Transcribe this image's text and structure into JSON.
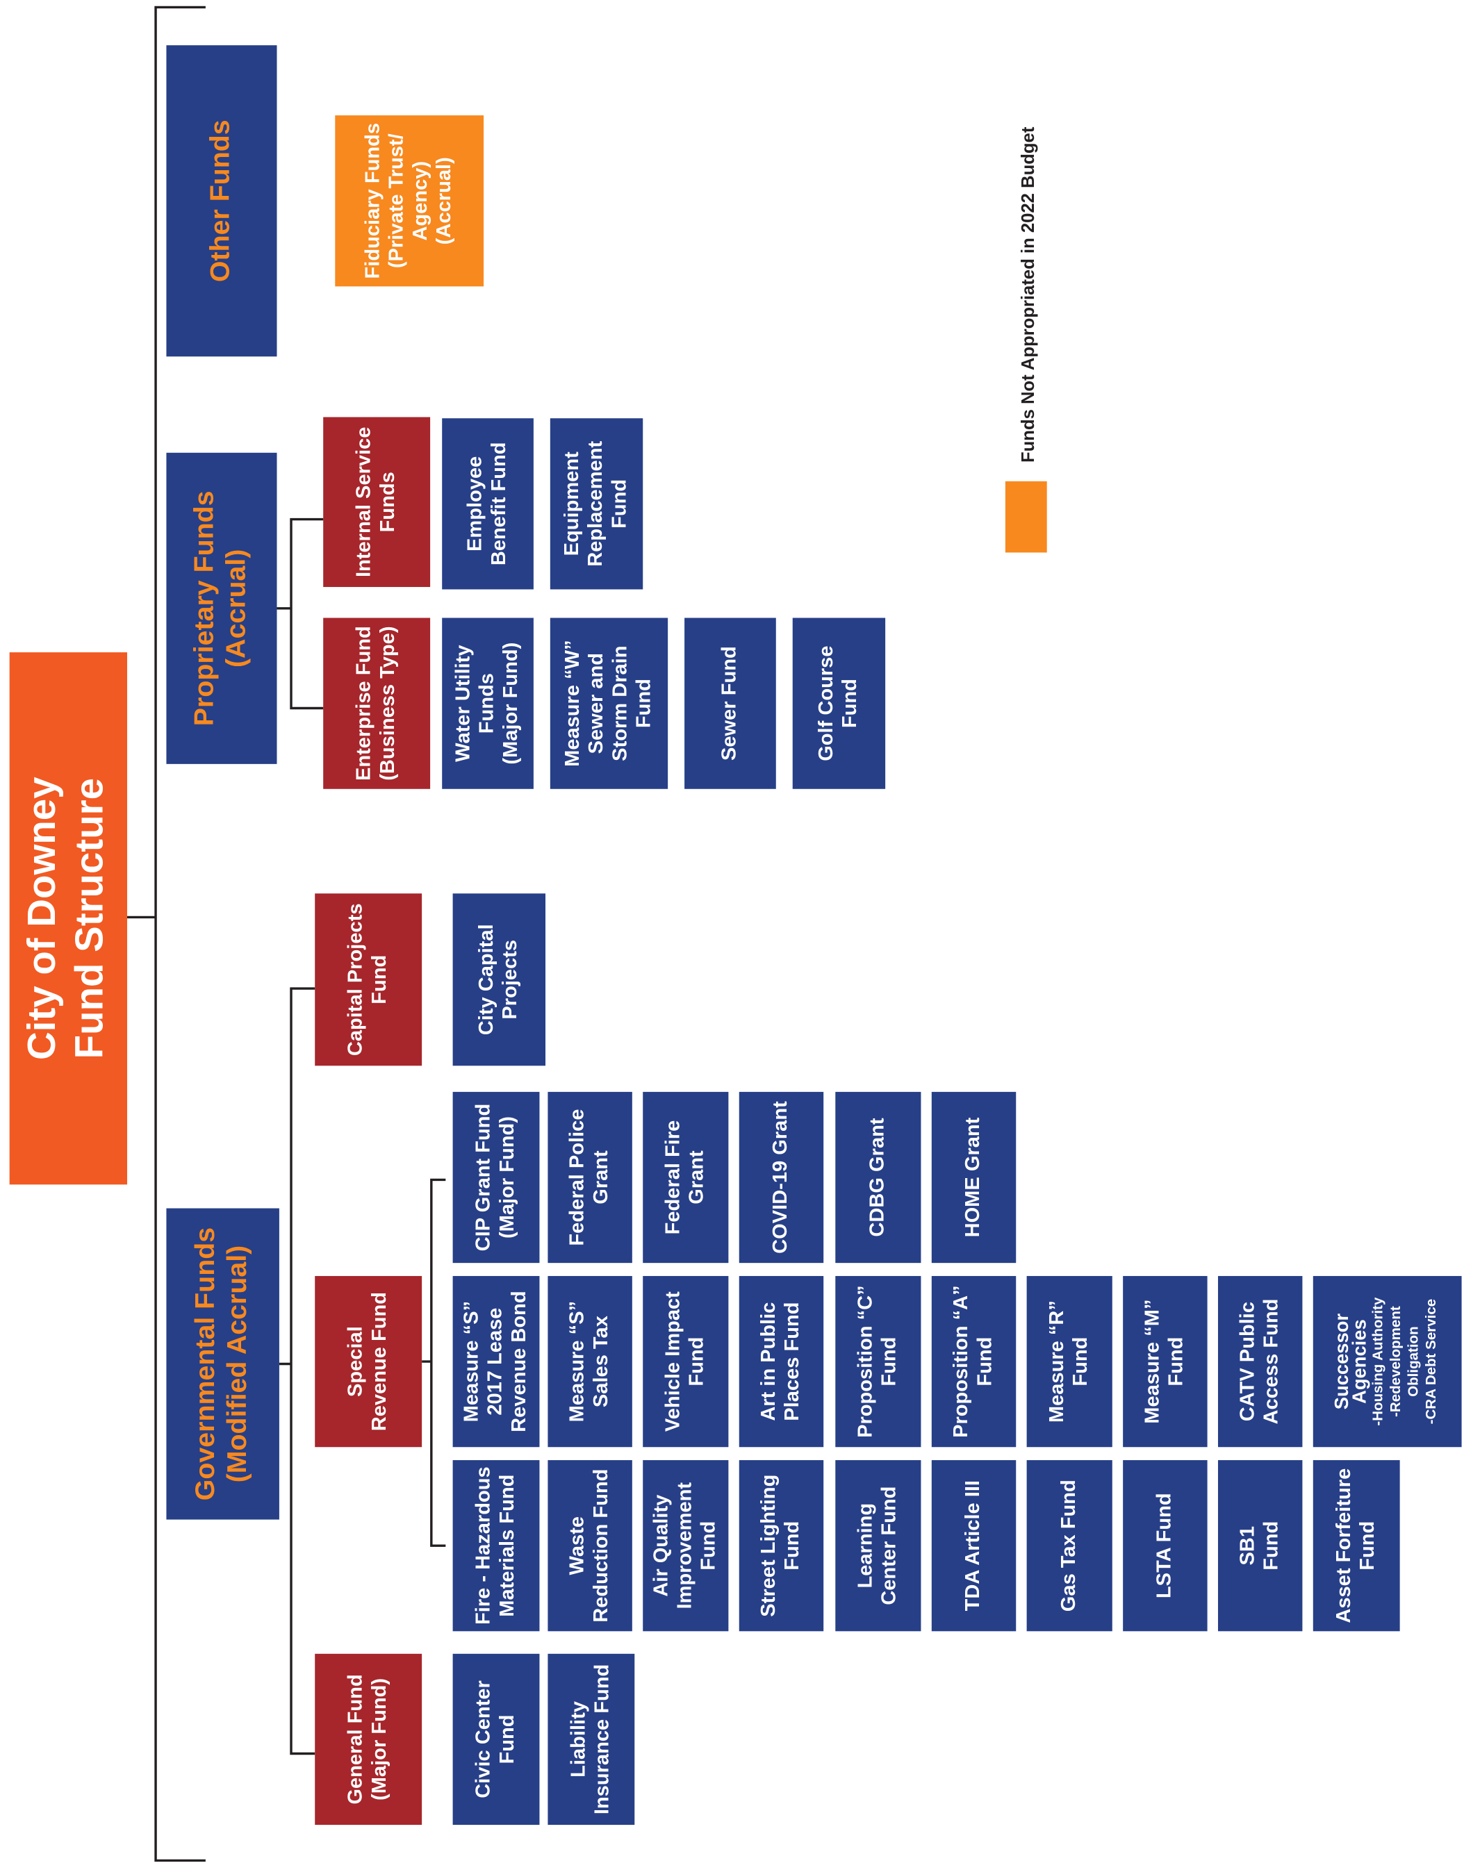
{
  "title": [
    "City of Downey",
    "Fund Structure"
  ],
  "legend": "Funds Not Appropriated in 2022 Budget",
  "nodes": [
    {
      "lines": [
        "Other Funds"
      ]
    },
    {
      "lines": [
        "Fiduciary Funds",
        "(Private Trust/",
        "Agency)",
        "(Accrual)"
      ]
    },
    {
      "lines": [
        "Proprietary Funds",
        "(Accrual)"
      ]
    },
    {
      "lines": [
        "Internal Service",
        "Funds"
      ]
    },
    {
      "lines": [
        "Employee",
        "Benefit Fund"
      ]
    },
    {
      "lines": [
        "Equipment",
        "Replacement",
        "Fund"
      ]
    },
    {
      "lines": [
        "Enterprise Fund",
        "(Business Type)"
      ]
    },
    {
      "lines": [
        "Water Utility",
        "Funds",
        "(Major Fund)"
      ]
    },
    {
      "lines": [
        "Measure “W”",
        "Sewer and",
        "Storm Drain",
        "Fund"
      ]
    },
    {
      "lines": [
        "Sewer Fund"
      ]
    },
    {
      "lines": [
        "Golf Course",
        "Fund"
      ]
    },
    {
      "lines": [
        "Governmental Funds",
        "(Modified Accrual)"
      ]
    },
    {
      "lines": [
        "Capital Projects",
        "Fund"
      ]
    },
    {
      "lines": [
        "City Capital",
        "Projects"
      ]
    },
    {
      "lines": [
        "CIP Grant Fund",
        "(Major Fund)"
      ]
    },
    {
      "lines": [
        "Federal Police",
        "Grant"
      ]
    },
    {
      "lines": [
        "Federal Fire",
        "Grant"
      ]
    },
    {
      "lines": [
        "COVID-19 Grant"
      ]
    },
    {
      "lines": [
        "CDBG Grant"
      ]
    },
    {
      "lines": [
        "HOME Grant"
      ]
    },
    {
      "lines": [
        "Special",
        "Revenue Fund"
      ]
    },
    {
      "lines": [
        "Measure “S”",
        "2017 Lease",
        "Revenue Bond"
      ]
    },
    {
      "lines": [
        "Measure “S”",
        "Sales Tax"
      ]
    },
    {
      "lines": [
        "Vehicle Impact",
        "Fund"
      ]
    },
    {
      "lines": [
        "Art in Public",
        "Places Fund"
      ]
    },
    {
      "lines": [
        "Proposition “C”",
        "Fund"
      ]
    },
    {
      "lines": [
        "Proposition “A”",
        "Fund"
      ]
    },
    {
      "lines": [
        "Measure “R”",
        "Fund"
      ]
    },
    {
      "lines": [
        "Measure “M”",
        "Fund"
      ]
    },
    {
      "lines": [
        "CATV Public",
        "Access Fund"
      ]
    },
    {
      "lines": [
        "Successor",
        "Agencies",
        "-Housing Authority",
        "-Redevelopment",
        "Obligation",
        "-CRA Debt Service"
      ]
    },
    {
      "lines": [
        "Fire - Hazardous",
        "Materials Fund"
      ]
    },
    {
      "lines": [
        "Waste",
        "Reduction Fund"
      ]
    },
    {
      "lines": [
        "Air Quality",
        "Improvement",
        "Fund"
      ]
    },
    {
      "lines": [
        "Street Lighting",
        "Fund"
      ]
    },
    {
      "lines": [
        "Learning",
        "Center Fund"
      ]
    },
    {
      "lines": [
        "TDA Article III"
      ]
    },
    {
      "lines": [
        "Gas Tax Fund"
      ]
    },
    {
      "lines": [
        "LSTA Fund"
      ]
    },
    {
      "lines": [
        "SB1",
        "Fund"
      ]
    },
    {
      "lines": [
        "Asset Forfeiture",
        "Fund"
      ]
    },
    {
      "lines": [
        "General Fund",
        "(Major Fund)"
      ]
    },
    {
      "lines": [
        "Civic Center",
        "Fund"
      ]
    },
    {
      "lines": [
        "Liability",
        "Insurance Fund"
      ]
    }
  ]
}
